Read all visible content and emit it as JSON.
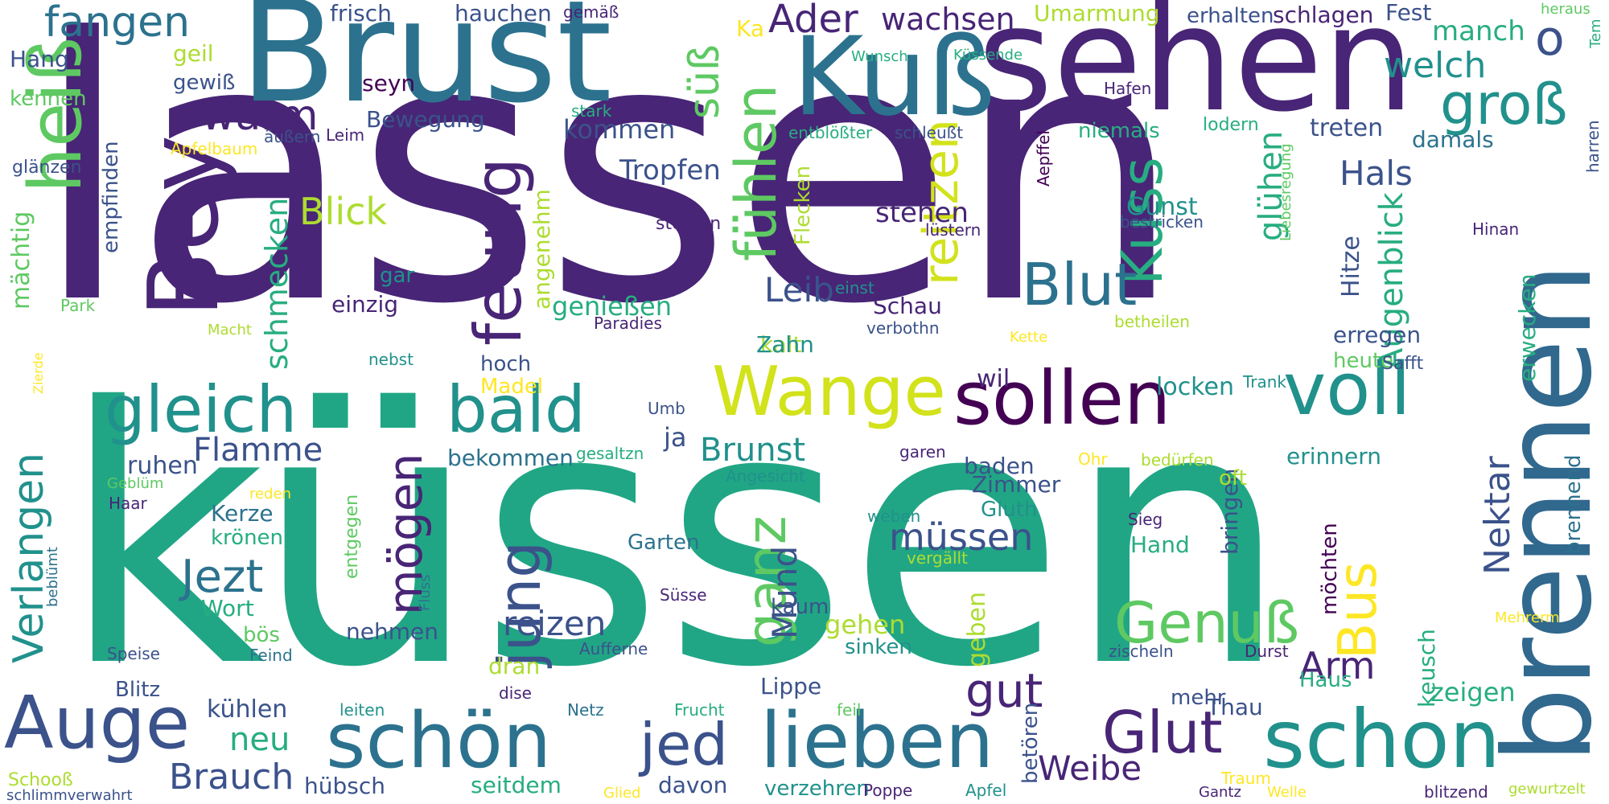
{
  "colors": {
    "background": "#ffffff",
    "palette": [
      "#440154",
      "#482576",
      "#3b528b",
      "#2c728e",
      "#21918c",
      "#27ad81",
      "#5ec962",
      "#addc30",
      "#fde725"
    ]
  },
  "words": [
    {
      "text": "lassen",
      "color": "#482576"
    },
    {
      "text": "küssen",
      "color": "#21a685"
    },
    {
      "text": "Brust",
      "color": "#2c728e"
    },
    {
      "text": "sehen",
      "color": "#482576"
    },
    {
      "text": "Kuß",
      "color": "#2c728e"
    },
    {
      "text": "brennen",
      "color": "#31688e"
    },
    {
      "text": "Bey",
      "color": "#482576"
    },
    {
      "text": "heiß",
      "color": "#5ec962"
    },
    {
      "text": "fangen",
      "color": "#2c728e"
    },
    {
      "text": "Ader",
      "color": "#482576"
    },
    {
      "text": "wachsen",
      "color": "#482576"
    },
    {
      "text": "groß",
      "color": "#21918c"
    },
    {
      "text": "o",
      "color": "#3b528b"
    },
    {
      "text": "welch",
      "color": "#21918c"
    },
    {
      "text": "manch",
      "color": "#27ad81"
    },
    {
      "text": "warm",
      "color": "#482576"
    },
    {
      "text": "süß",
      "color": "#5ec962"
    },
    {
      "text": "fühlen",
      "color": "#5ec962"
    },
    {
      "text": "feurig",
      "color": "#482576"
    },
    {
      "text": "reitzen",
      "color": "#d2e21b"
    },
    {
      "text": "Kuss",
      "color": "#27ad81"
    },
    {
      "text": "Blut",
      "color": "#2c728e"
    },
    {
      "text": "Hals",
      "color": "#3b528b"
    },
    {
      "text": "Hitze",
      "color": "#3b528b"
    },
    {
      "text": "glühen",
      "color": "#27ad81"
    },
    {
      "text": "Augenblick",
      "color": "#27ad81"
    },
    {
      "text": "Blick",
      "color": "#addc30"
    },
    {
      "text": "schmecken",
      "color": "#27ad81"
    },
    {
      "text": "gleich",
      "color": "#21918c"
    },
    {
      "text": "bald",
      "color": "#21918c"
    },
    {
      "text": "Wange",
      "color": "#d2e21b"
    },
    {
      "text": "sollen",
      "color": "#440154"
    },
    {
      "text": "voll",
      "color": "#21918c"
    },
    {
      "text": "Auge",
      "color": "#3b528b"
    },
    {
      "text": "schön",
      "color": "#2c728e"
    },
    {
      "text": "lieben",
      "color": "#2c728e"
    },
    {
      "text": "schon",
      "color": "#21918c"
    },
    {
      "text": "Glut",
      "color": "#482576"
    },
    {
      "text": "Genuß",
      "color": "#5ec962"
    },
    {
      "text": "Bus",
      "color": "#fde725"
    },
    {
      "text": "jed",
      "color": "#3b528b"
    },
    {
      "text": "jung",
      "color": "#3b528b"
    },
    {
      "text": "ganz",
      "color": "#5ec962"
    },
    {
      "text": "mögen",
      "color": "#482576"
    },
    {
      "text": "Jezt",
      "color": "#2c728e"
    },
    {
      "text": "Verlangen",
      "color": "#21918c"
    },
    {
      "text": "Flamme",
      "color": "#3b528b"
    },
    {
      "text": "Brunst",
      "color": "#21918c"
    },
    {
      "text": "müssen",
      "color": "#3b528b"
    },
    {
      "text": "Mund",
      "color": "#3b528b"
    },
    {
      "text": "reizen",
      "color": "#3b528b"
    },
    {
      "text": "gut",
      "color": "#482576"
    },
    {
      "text": "Arm",
      "color": "#482576"
    },
    {
      "text": "Nektar",
      "color": "#3b528b"
    },
    {
      "text": "Weibe",
      "color": "#482576"
    },
    {
      "text": "Brauch",
      "color": "#3b528b"
    },
    {
      "text": "neu",
      "color": "#27ad81"
    },
    {
      "text": "frisch",
      "color": "#3b528b"
    },
    {
      "text": "hauchen",
      "color": "#3b528b"
    },
    {
      "text": "gemäß",
      "color": "#482576"
    },
    {
      "text": "Umarmung",
      "color": "#addc30"
    },
    {
      "text": "erhalten",
      "color": "#3b528b"
    },
    {
      "text": "schlagen",
      "color": "#482576"
    },
    {
      "text": "Fest",
      "color": "#3b528b"
    },
    {
      "text": "heraus",
      "color": "#5ec962"
    },
    {
      "text": "Tem",
      "color": "#27ad81"
    },
    {
      "text": "Hang",
      "color": "#3b528b"
    },
    {
      "text": "geil",
      "color": "#addc30"
    },
    {
      "text": "gewiß",
      "color": "#3b528b"
    },
    {
      "text": "seyn",
      "color": "#440154"
    },
    {
      "text": "Ka",
      "color": "#fde725"
    },
    {
      "text": "Wunsch",
      "color": "#27ad81"
    },
    {
      "text": "Küssende",
      "color": "#27ad81"
    },
    {
      "text": "kennen",
      "color": "#5ec962"
    },
    {
      "text": "Hafen",
      "color": "#482576"
    },
    {
      "text": "stark",
      "color": "#27ad81"
    },
    {
      "text": "Bewegung",
      "color": "#3b528b"
    },
    {
      "text": "kommen",
      "color": "#3b528b"
    },
    {
      "text": "niemals",
      "color": "#27ad81"
    },
    {
      "text": "lodern",
      "color": "#27ad81"
    },
    {
      "text": "treten",
      "color": "#3b528b"
    },
    {
      "text": "damals",
      "color": "#2c728e"
    },
    {
      "text": "äußern",
      "color": "#3b528b"
    },
    {
      "text": "Leim",
      "color": "#482576"
    },
    {
      "text": "Apfelbaum",
      "color": "#fde725"
    },
    {
      "text": "entblößter",
      "color": "#27ad81"
    },
    {
      "text": "schleußt",
      "color": "#3b528b"
    },
    {
      "text": "Aepffel",
      "color": "#440154"
    },
    {
      "text": "glänzen",
      "color": "#3b528b"
    },
    {
      "text": "empfinden",
      "color": "#3b528b"
    },
    {
      "text": "Tropfen",
      "color": "#3b528b"
    },
    {
      "text": "steigen",
      "color": "#482576"
    },
    {
      "text": "Flecken",
      "color": "#addc30"
    },
    {
      "text": "Gunst",
      "color": "#21918c"
    },
    {
      "text": "bestricken",
      "color": "#3b528b"
    },
    {
      "text": "lüstern",
      "color": "#482576"
    },
    {
      "text": "Liebesregung",
      "color": "#5ec962"
    },
    {
      "text": "Hinan",
      "color": "#482576"
    },
    {
      "text": "harren",
      "color": "#3b528b"
    },
    {
      "text": "mächtig",
      "color": "#5ec962"
    },
    {
      "text": "stehen",
      "color": "#482576"
    },
    {
      "text": "angenehm",
      "color": "#addc30"
    },
    {
      "text": "gar",
      "color": "#21918c"
    },
    {
      "text": "einzig",
      "color": "#482576"
    },
    {
      "text": "Leib",
      "color": "#3b528b"
    },
    {
      "text": "einst",
      "color": "#21918c"
    },
    {
      "text": "Schau",
      "color": "#482576"
    },
    {
      "text": "Park",
      "color": "#5ec962"
    },
    {
      "text": "genießen",
      "color": "#27ad81"
    },
    {
      "text": "kalt",
      "color": "#addc30"
    },
    {
      "text": "Macht",
      "color": "#addc30"
    },
    {
      "text": "Paradies",
      "color": "#482576"
    },
    {
      "text": "verbothn",
      "color": "#3b528b"
    },
    {
      "text": "Kette",
      "color": "#fde725"
    },
    {
      "text": "betheilen",
      "color": "#addc30"
    },
    {
      "text": "erwecken",
      "color": "#27ad81"
    },
    {
      "text": "Zierde",
      "color": "#fde725"
    },
    {
      "text": "Zahn",
      "color": "#21918c"
    },
    {
      "text": "erregen",
      "color": "#3b528b"
    },
    {
      "text": "hoch",
      "color": "#3b528b"
    },
    {
      "text": "heute",
      "color": "#5ec962"
    },
    {
      "text": "nebst",
      "color": "#21918c"
    },
    {
      "text": "Madel",
      "color": "#fde725"
    },
    {
      "text": "wil",
      "color": "#482576"
    },
    {
      "text": "Safft",
      "color": "#3b528b"
    },
    {
      "text": "Trank",
      "color": "#21918c"
    },
    {
      "text": "locken",
      "color": "#21918c"
    },
    {
      "text": "Umb",
      "color": "#3b528b"
    },
    {
      "text": "ja",
      "color": "#3b528b"
    },
    {
      "text": "ruhen",
      "color": "#3b528b"
    },
    {
      "text": "bekommen",
      "color": "#2c728e"
    },
    {
      "text": "gesaltzn",
      "color": "#27ad81"
    },
    {
      "text": "garen",
      "color": "#482576"
    },
    {
      "text": "Ohr",
      "color": "#fde725"
    },
    {
      "text": "bedürfen",
      "color": "#addc30"
    },
    {
      "text": "erinnern",
      "color": "#21918c"
    },
    {
      "text": "Geblüm",
      "color": "#5ec962"
    },
    {
      "text": "Haar",
      "color": "#482576"
    },
    {
      "text": "Kerze",
      "color": "#2c728e"
    },
    {
      "text": "reden",
      "color": "#fde725"
    },
    {
      "text": "entgegen",
      "color": "#5ec962"
    },
    {
      "text": "Angesicht",
      "color": "#21918c"
    },
    {
      "text": "baden",
      "color": "#3b528b"
    },
    {
      "text": "Zimmer",
      "color": "#3b528b"
    },
    {
      "text": "bringen",
      "color": "#3b528b"
    },
    {
      "text": "oft",
      "color": "#addc30"
    },
    {
      "text": "brennend",
      "color": "#2c728e"
    },
    {
      "text": "krönen",
      "color": "#27ad81"
    },
    {
      "text": "Gluth",
      "color": "#21918c"
    },
    {
      "text": "weben",
      "color": "#21918c"
    },
    {
      "text": "Sieg",
      "color": "#482576"
    },
    {
      "text": "Hand",
      "color": "#27ad81"
    },
    {
      "text": "beblümt",
      "color": "#2c728e"
    },
    {
      "text": "Fluss",
      "color": "#2c728e"
    },
    {
      "text": "Garten",
      "color": "#2c728e"
    },
    {
      "text": "vergällt",
      "color": "#addc30"
    },
    {
      "text": "möchten",
      "color": "#440154"
    },
    {
      "text": "Wort",
      "color": "#27ad81"
    },
    {
      "text": "kaum",
      "color": "#3b528b"
    },
    {
      "text": "Süsse",
      "color": "#482576"
    },
    {
      "text": "geben",
      "color": "#addc30"
    },
    {
      "text": "gehen",
      "color": "#addc30"
    },
    {
      "text": "Mehrerm",
      "color": "#fde725"
    },
    {
      "text": "bös",
      "color": "#5ec962"
    },
    {
      "text": "nehmen",
      "color": "#3b528b"
    },
    {
      "text": "sinken",
      "color": "#21918c"
    },
    {
      "text": "keusch",
      "color": "#27ad81"
    },
    {
      "text": "Speise",
      "color": "#3b528b"
    },
    {
      "text": "Feind",
      "color": "#2c728e"
    },
    {
      "text": "Aufferne",
      "color": "#3b528b"
    },
    {
      "text": "zischeln",
      "color": "#3b528b"
    },
    {
      "text": "Durst",
      "color": "#482576"
    },
    {
      "text": "Haus",
      "color": "#27ad81"
    },
    {
      "text": "dran",
      "color": "#addc30"
    },
    {
      "text": "Blitz",
      "color": "#3b528b"
    },
    {
      "text": "Lippe",
      "color": "#3b528b"
    },
    {
      "text": "mehr",
      "color": "#3b528b"
    },
    {
      "text": "zeigen",
      "color": "#27ad81"
    },
    {
      "text": "dise",
      "color": "#482576"
    },
    {
      "text": "kühlen",
      "color": "#3b528b"
    },
    {
      "text": "leiten",
      "color": "#21918c"
    },
    {
      "text": "Netz",
      "color": "#2c728e"
    },
    {
      "text": "Frucht",
      "color": "#27ad81"
    },
    {
      "text": "feil",
      "color": "#5ec962"
    },
    {
      "text": "betören",
      "color": "#3b528b"
    },
    {
      "text": "Thau",
      "color": "#3b528b"
    },
    {
      "text": "Schooß",
      "color": "#addc30"
    },
    {
      "text": "schlimmverwahrt",
      "color": "#3b528b"
    },
    {
      "text": "hübsch",
      "color": "#3b528b"
    },
    {
      "text": "seitdem",
      "color": "#27ad81"
    },
    {
      "text": "Glied",
      "color": "#fde725"
    },
    {
      "text": "davon",
      "color": "#3b528b"
    },
    {
      "text": "verzehren",
      "color": "#21918c"
    },
    {
      "text": "Poppe",
      "color": "#482576"
    },
    {
      "text": "Apfel",
      "color": "#21918c"
    },
    {
      "text": "Traum",
      "color": "#fde725"
    },
    {
      "text": "Gantz",
      "color": "#482576"
    },
    {
      "text": "Welle",
      "color": "#fde725"
    },
    {
      "text": "blitzend",
      "color": "#482576"
    },
    {
      "text": "gewurtzelt",
      "color": "#addc30"
    }
  ]
}
